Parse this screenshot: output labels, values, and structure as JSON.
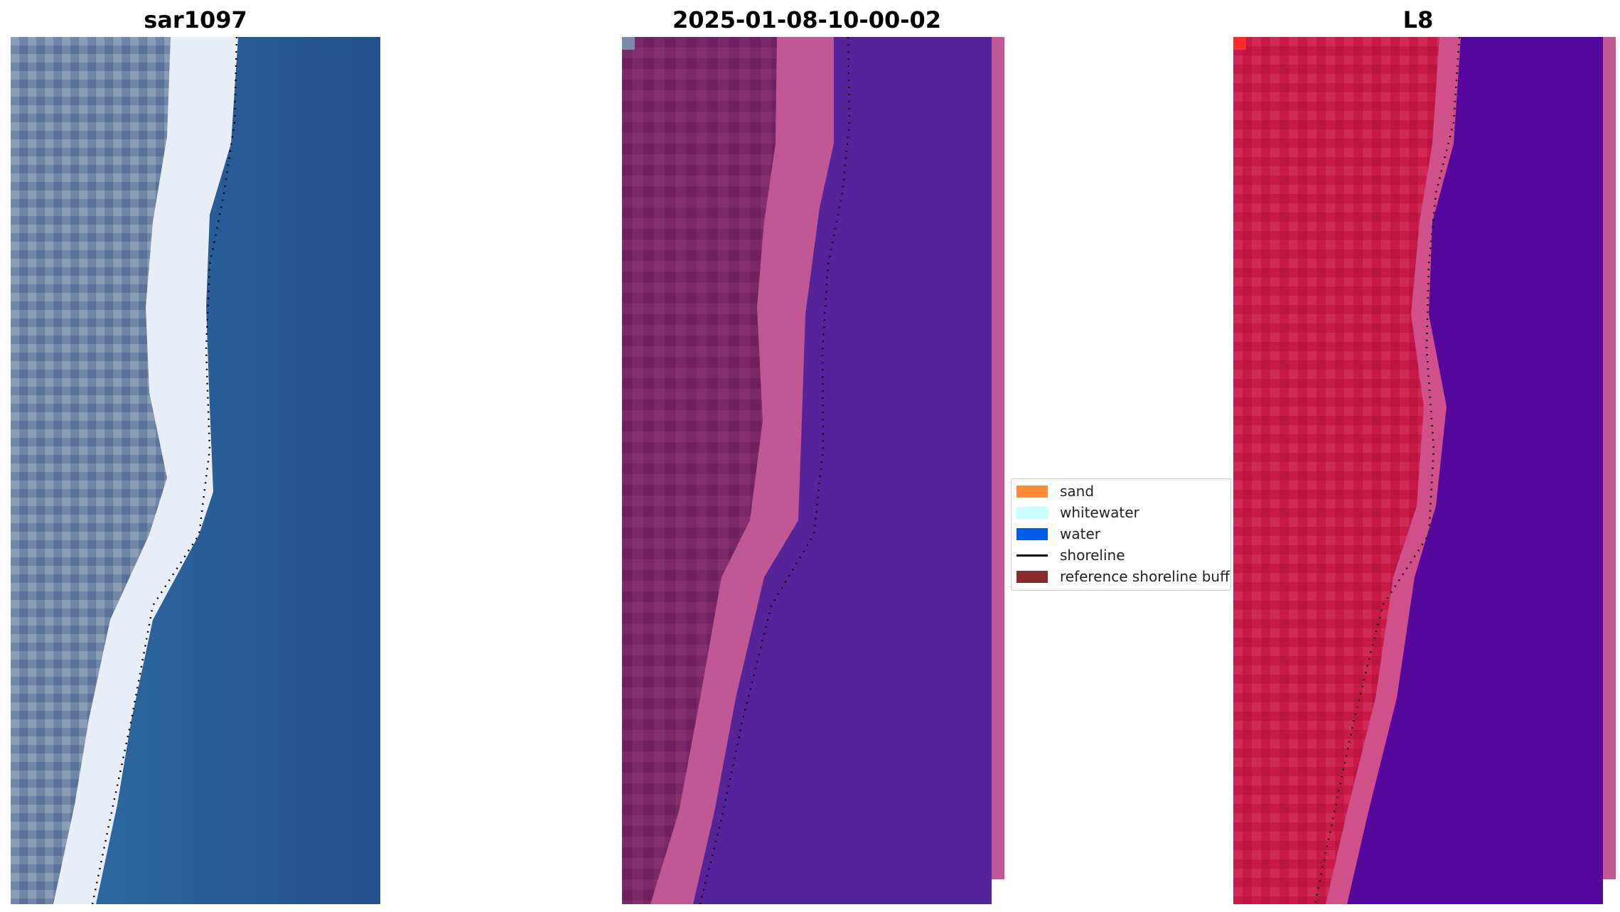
{
  "panels": [
    {
      "title": "sar1097"
    },
    {
      "title": "2025-01-08-10-00-02"
    },
    {
      "title": "L8"
    }
  ],
  "legend": {
    "items": [
      {
        "label": "sand",
        "color": "#ff8c3a",
        "kind": "patch"
      },
      {
        "label": "whitewater",
        "color": "#c8ffff",
        "kind": "patch"
      },
      {
        "label": "water",
        "color": "#005aeb",
        "kind": "patch"
      },
      {
        "label": "shoreline",
        "color": "#000000",
        "kind": "line"
      },
      {
        "label": "reference shoreline buffer",
        "color": "#8b2a2e",
        "kind": "patch"
      }
    ]
  },
  "colors": {
    "rgb_land": "#6f86a6",
    "rgb_whitewater": "#e8eef6",
    "rgb_ocean": "#2a5f9a",
    "class_land": "#7a2868",
    "class_sand_band": "#c05896",
    "class_water": "#55249a",
    "l8_land": "#c81a48",
    "l8_band": "#d0508a",
    "l8_water": "#55089e",
    "shoreline": "#000000"
  }
}
